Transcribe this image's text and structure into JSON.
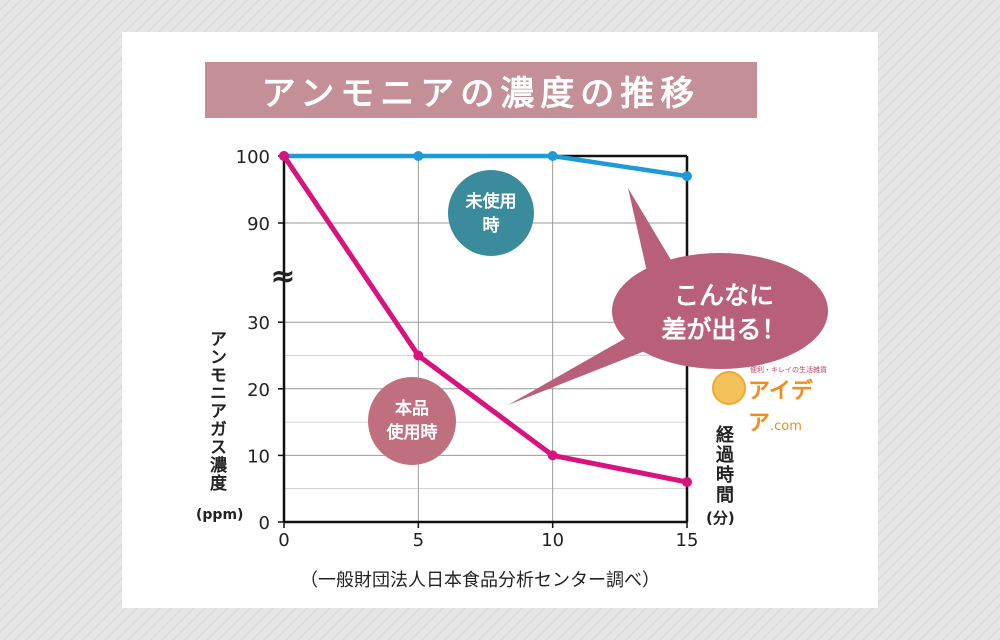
{
  "title": "アンモニアの濃度の推移",
  "y_axis_label": "アンモニアガス濃度",
  "y_axis_unit": "(ppm)",
  "x_axis_label": "経過時間",
  "x_axis_unit": "(分)",
  "source": "（一般財団法人日本食品分析センター調べ）",
  "break_symbol": "≈",
  "callout": {
    "line1": "こんなに",
    "line2": "差が出る！"
  },
  "logo": {
    "tagline": "便利・キレイの生活雑貨",
    "brand": "アイデア",
    "suffix": ".com"
  },
  "colors": {
    "unused": "#1e9ad6",
    "used": "#d6137f",
    "title_bg": "#c48f96",
    "callout_bg": "#b8607a",
    "badge_unused": "#3a8c9c",
    "badge_used": "#bf6f7d"
  },
  "chart_data": {
    "type": "line",
    "x": [
      0,
      5,
      10,
      15
    ],
    "x_ticks": [
      "0",
      "5",
      "10",
      "15"
    ],
    "y_ticks_lower": [
      "0",
      "10",
      "20",
      "30"
    ],
    "y_ticks_upper": [
      "90",
      "100"
    ],
    "y_break": [
      30,
      90
    ],
    "series": [
      {
        "name": "未使用時",
        "label_lines": [
          "未使用",
          "時"
        ],
        "values": [
          100,
          100,
          100,
          97
        ]
      },
      {
        "name": "本品使用時",
        "label_lines": [
          "本品",
          "使用時"
        ],
        "values": [
          100,
          25,
          10,
          6
        ]
      }
    ]
  }
}
